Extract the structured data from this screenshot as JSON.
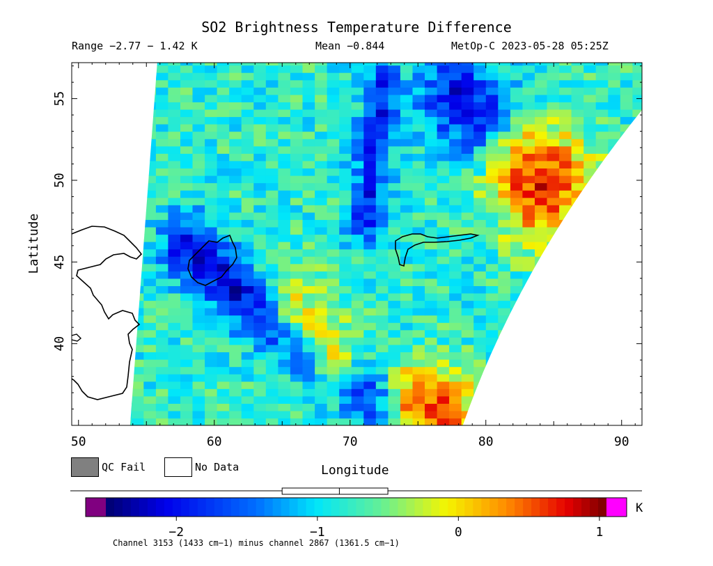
{
  "header": {
    "title": "SO2 Brightness Temperature Difference",
    "range": "Range −2.77 − 1.42 K",
    "mean": "Mean −0.844",
    "satellite": "MetOp-C 2023-05-28 05:25Z"
  },
  "legend": {
    "qc_fail": "QC Fail",
    "no_data": "No Data"
  },
  "colorbar": {
    "unit": "K",
    "tick_labels": [
      "−2",
      "−1",
      "0",
      "1"
    ],
    "tick_values": [
      -2,
      -1,
      0,
      1
    ],
    "vmin": -2.5,
    "vmax": 1.05,
    "range_indicator": [
      -1.25,
      -0.5
    ],
    "mean_marker": -0.844,
    "colors": {
      "under": "#800080",
      "over": "#ff00ff"
    }
  },
  "footnote": "Channel 3153 (1433 cm−1) minus channel 2867 (1361.5 cm−1)",
  "chart_data": {
    "type": "heatmap",
    "title": "SO2 Brightness Temperature Difference",
    "xlabel": "Longitude",
    "ylabel": "Latitude",
    "xlim": [
      49.5,
      91.5
    ],
    "ylim": [
      35,
      57.2
    ],
    "xticks": [
      50,
      60,
      70,
      80,
      90
    ],
    "yticks": [
      40,
      45,
      50,
      55
    ],
    "units": "K",
    "value_range": [
      -2.77,
      1.42
    ],
    "mean": -0.844,
    "background_value": -0.8,
    "features": [
      {
        "name": "low band NW-SE",
        "lon": [
          58,
          62,
          66,
          70,
          73
        ],
        "lat": [
          46,
          43,
          40.5,
          38,
          36
        ],
        "value": -2.1,
        "width": 1.3
      },
      {
        "name": "low band N",
        "lon": [
          72.5,
          72,
          71.5,
          71
        ],
        "lat": [
          56,
          53,
          50,
          47.5
        ],
        "value": -1.9,
        "width": 0.9
      },
      {
        "name": "low region NE",
        "lon": [
          78,
          80
        ],
        "lat": [
          55,
          53.5
        ],
        "value": -2.0,
        "width": 2.0
      },
      {
        "name": "high region NE",
        "lon": [
          83,
          85,
          84
        ],
        "lat": [
          50.5,
          50,
          49
        ],
        "value": 0.6,
        "width": 2.2
      },
      {
        "name": "high region S",
        "lon": [
          75,
          77
        ],
        "lat": [
          36.5,
          36
        ],
        "value": 0.5,
        "width": 1.8
      },
      {
        "name": "moderate high central",
        "lon": [
          66,
          69
        ],
        "lat": [
          43,
          39.5
        ],
        "value": -0.2,
        "width": 1.6
      }
    ]
  }
}
